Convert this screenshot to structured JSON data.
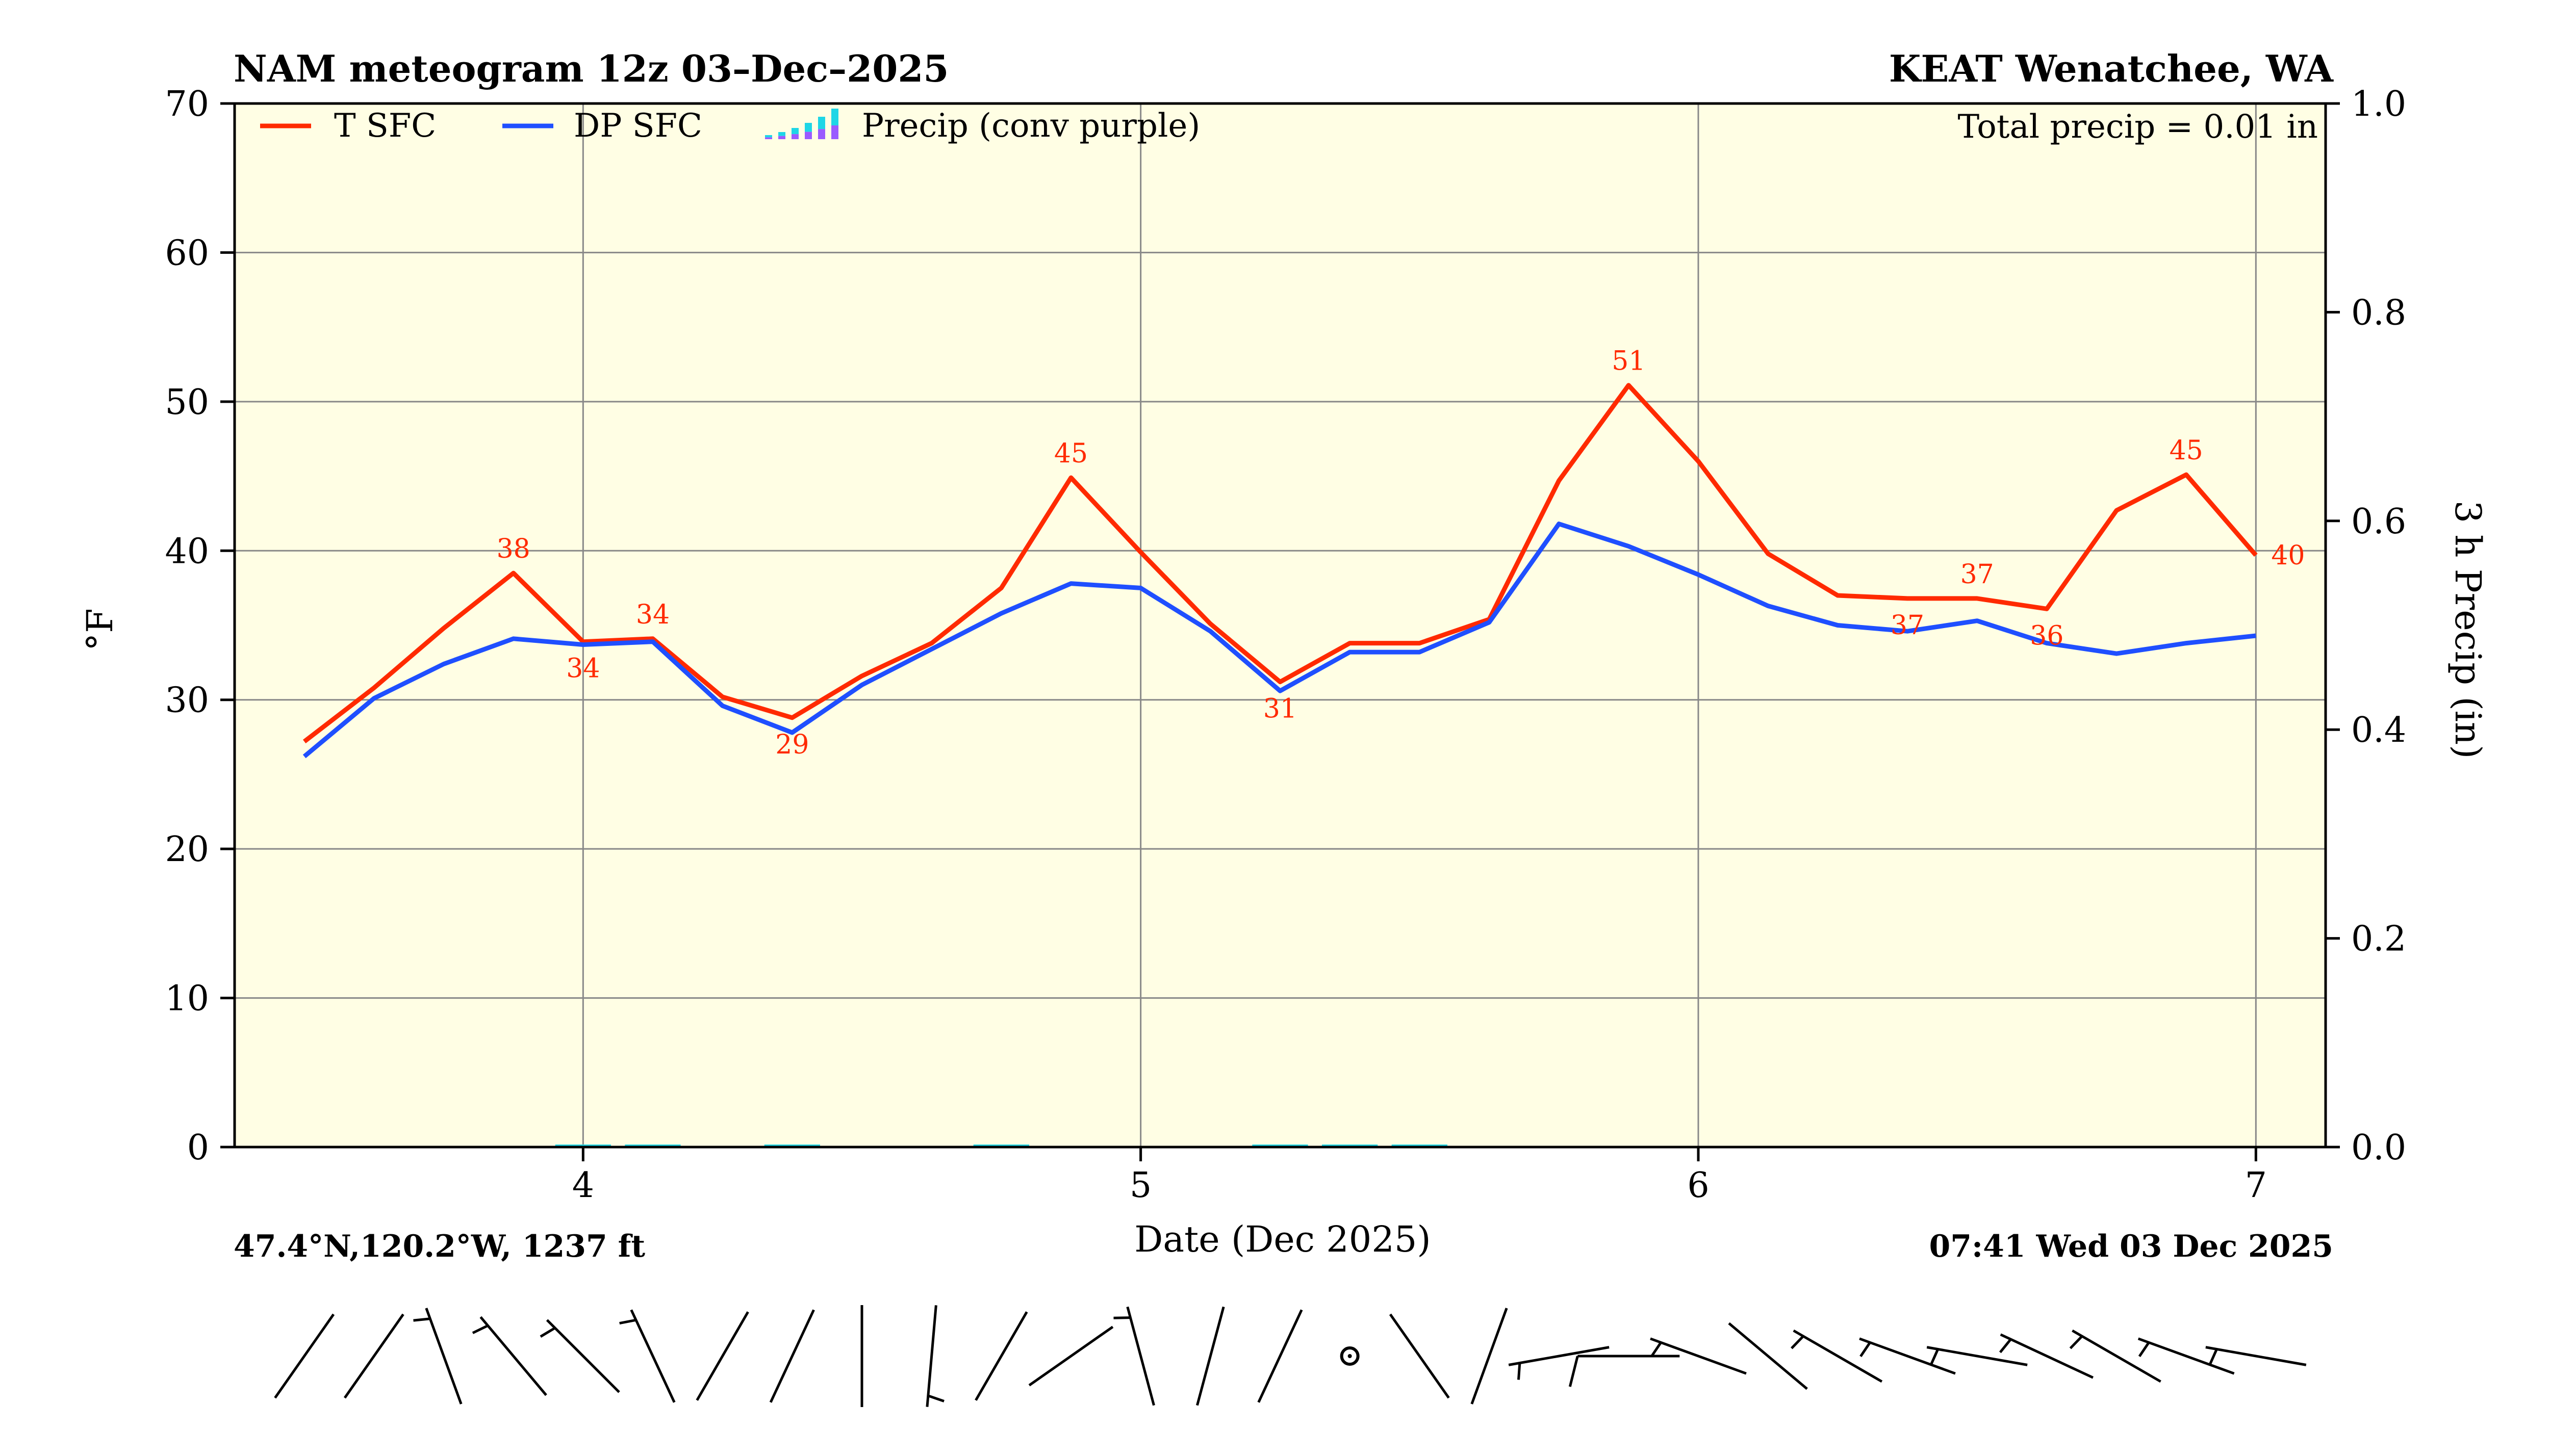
{
  "colors": {
    "temperature": "#ff2a00",
    "dewpoint": "#1f4fff",
    "plot_background": "#fffee4",
    "grid": "#888888",
    "precip": "#1ed6e6",
    "precip_convective": "#9a5bff"
  },
  "header": {
    "title_left": "NAM meteogram 12z 03–Dec–2025",
    "title_right": "KEAT Wenatchee, WA"
  },
  "footer": {
    "location": "47.4°N,120.2°W, 1237 ft",
    "issued": "07:41 Wed 03 Dec 2025"
  },
  "chart_data": {
    "type": "line",
    "title": "NAM meteogram 12z 03–Dec–2025",
    "xlabel": "Date (Dec 2025)",
    "ylabel": "°F",
    "ylabel_right": "3 h Precip (in)",
    "xlim": [
      3.375,
      7.125
    ],
    "ylim": [
      0,
      70
    ],
    "ylim_right": [
      0,
      1.0
    ],
    "x_ticks": [
      4,
      5,
      6,
      7
    ],
    "x_tick_labels": [
      "4",
      "5",
      "6",
      "7"
    ],
    "y_ticks": [
      0,
      10,
      20,
      30,
      40,
      50,
      60,
      70
    ],
    "y_right_ticks": [
      0,
      0.2,
      0.4,
      0.6,
      0.8,
      1.0
    ],
    "y_right_tick_labels": [
      "0.0",
      "0.2",
      "0.4",
      "0.6",
      "0.8",
      "1.0"
    ],
    "grid": true,
    "legend_position": "top-left",
    "legend": [
      "T SFC",
      "DP SFC",
      "Precip (conv purple)"
    ],
    "annotation": "Total precip = 0.01 in",
    "series": [
      {
        "name": "T SFC",
        "x": [
          3.5,
          3.625,
          3.75,
          3.875,
          4.0,
          4.125,
          4.25,
          4.375,
          4.5,
          4.625,
          4.75,
          4.875,
          5.0,
          5.125,
          5.25,
          5.375,
          5.5,
          5.625,
          5.75,
          5.875,
          6.0,
          6.125,
          6.25,
          6.375,
          6.5,
          6.625,
          6.75,
          6.875,
          7.0
        ],
        "values": [
          27.2,
          30.8,
          34.8,
          38.5,
          33.9,
          34.1,
          30.2,
          28.8,
          31.6,
          33.8,
          37.5,
          44.9,
          39.9,
          35.1,
          31.2,
          33.8,
          33.8,
          35.4,
          44.7,
          51.1,
          46.0,
          39.8,
          37.0,
          36.8,
          36.8,
          36.1,
          42.7,
          45.1,
          39.7
        ]
      },
      {
        "name": "DP SFC",
        "x": [
          3.5,
          3.625,
          3.75,
          3.875,
          4.0,
          4.125,
          4.25,
          4.375,
          4.5,
          4.625,
          4.75,
          4.875,
          5.0,
          5.125,
          5.25,
          5.375,
          5.5,
          5.625,
          5.75,
          5.875,
          6.0,
          6.125,
          6.25,
          6.375,
          6.5,
          6.625,
          6.75,
          6.875,
          7.0
        ],
        "values": [
          26.2,
          30.1,
          32.4,
          34.1,
          33.7,
          33.9,
          29.6,
          27.8,
          31.0,
          33.4,
          35.8,
          37.8,
          37.5,
          34.6,
          30.6,
          33.2,
          33.2,
          35.2,
          41.8,
          40.3,
          38.4,
          36.3,
          35.0,
          34.6,
          35.3,
          33.8,
          33.1,
          33.8,
          34.3
        ]
      },
      {
        "name": "Precip (conv purple)",
        "axis": "right",
        "x": [
          4.0,
          4.125,
          4.375,
          4.75,
          5.25,
          5.375,
          5.5
        ],
        "values": [
          0.001,
          0.001,
          0.002,
          0.001,
          0.001,
          0.002,
          0.001
        ]
      }
    ],
    "data_labels": [
      {
        "series": "T SFC",
        "x": 3.875,
        "text": "38",
        "position": "above"
      },
      {
        "series": "T SFC",
        "x": 4.0,
        "text": "34",
        "position": "below"
      },
      {
        "series": "T SFC",
        "x": 4.125,
        "text": "34",
        "position": "above"
      },
      {
        "series": "T SFC",
        "x": 4.375,
        "text": "29",
        "position": "below"
      },
      {
        "series": "T SFC",
        "x": 4.875,
        "text": "45",
        "position": "above"
      },
      {
        "series": "T SFC",
        "x": 5.25,
        "text": "31",
        "position": "below"
      },
      {
        "series": "T SFC",
        "x": 5.875,
        "text": "51",
        "position": "above"
      },
      {
        "series": "T SFC",
        "x": 6.375,
        "text": "37",
        "position": "below"
      },
      {
        "series": "T SFC",
        "x": 6.5,
        "text": "37",
        "position": "above"
      },
      {
        "series": "T SFC",
        "x": 6.625,
        "text": "36",
        "position": "below"
      },
      {
        "series": "T SFC",
        "x": 6.875,
        "text": "45",
        "position": "above"
      },
      {
        "series": "T SFC",
        "x": 7.0,
        "text": "40",
        "position": "right"
      }
    ],
    "wind_barbs": {
      "x": [
        3.5,
        3.625,
        3.75,
        3.875,
        4.0,
        4.125,
        4.25,
        4.375,
        4.5,
        4.625,
        4.75,
        4.875,
        5.0,
        5.125,
        5.25,
        5.375,
        5.5,
        5.625,
        5.75,
        5.875,
        6.0,
        6.125,
        6.25,
        6.375,
        6.5,
        6.625,
        6.75,
        6.875,
        7.0
      ],
      "from_direction_deg": [
        215,
        215,
        340,
        320,
        315,
        335,
        210,
        205,
        180,
        185,
        210,
        235,
        345,
        195,
        205,
        null,
        325,
        200,
        260,
        270,
        290,
        310,
        300,
        290,
        280,
        295,
        300,
        290,
        280
      ],
      "speed_kt": [
        3,
        3,
        5,
        5,
        5,
        5,
        3,
        3,
        3,
        5,
        3,
        3,
        5,
        3,
        3,
        0,
        3,
        3,
        5,
        10,
        5,
        3,
        5,
        5,
        5,
        5,
        5,
        5,
        5
      ]
    }
  }
}
